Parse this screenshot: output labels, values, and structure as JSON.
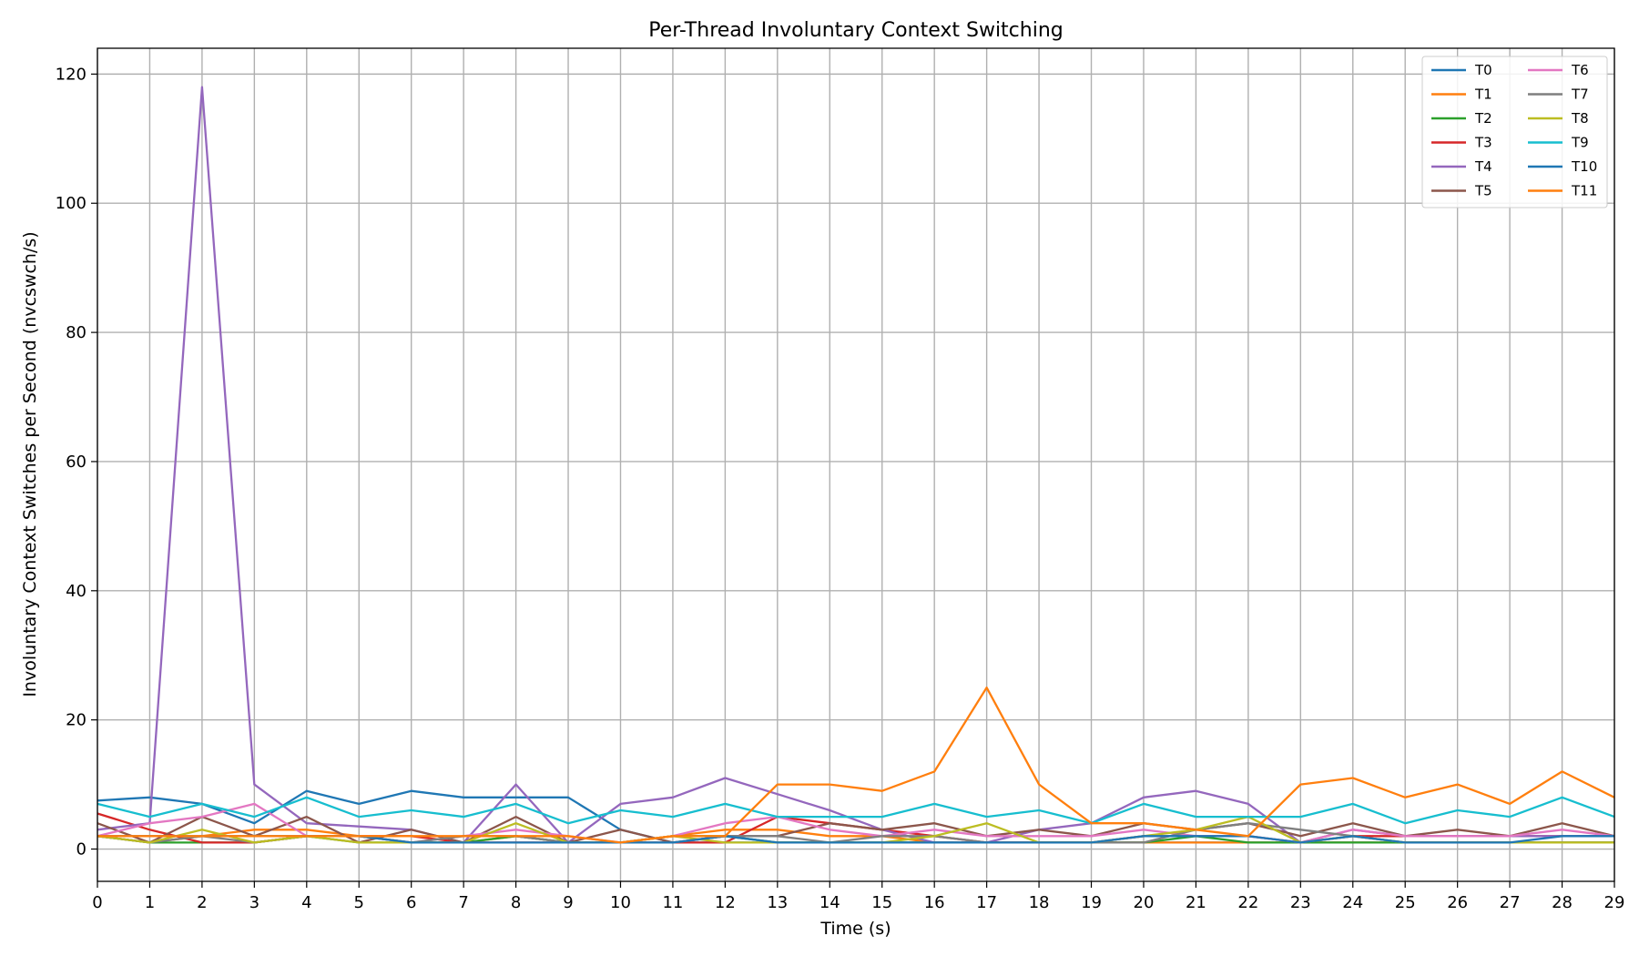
{
  "chart_data": {
    "type": "line",
    "title": "Per-Thread Involuntary Context Switching",
    "xlabel": "Time (s)",
    "ylabel": "Involuntary Context Switches per Second (nvcswch/s)",
    "xlim": [
      0,
      29
    ],
    "ylim": [
      -5,
      124
    ],
    "xticks": [
      0,
      1,
      2,
      3,
      4,
      5,
      6,
      7,
      8,
      9,
      10,
      11,
      12,
      13,
      14,
      15,
      16,
      17,
      18,
      19,
      20,
      21,
      22,
      23,
      24,
      25,
      26,
      27,
      28,
      29
    ],
    "yticks": [
      0,
      20,
      40,
      60,
      80,
      100,
      120
    ],
    "grid": true,
    "legend_position": "top-right",
    "legend_columns": 2,
    "x": [
      0,
      1,
      2,
      3,
      4,
      5,
      6,
      7,
      8,
      9,
      10,
      11,
      12,
      13,
      14,
      15,
      16,
      17,
      18,
      19,
      20,
      21,
      22,
      23,
      24,
      25,
      26,
      27,
      28,
      29
    ],
    "series": [
      {
        "name": "T0",
        "color": "#1f77b4",
        "values": [
          7.5,
          8,
          7,
          4,
          9,
          7,
          9,
          8,
          8,
          8,
          3,
          1,
          1,
          1,
          1,
          1,
          1,
          1,
          1,
          1,
          1,
          1,
          1,
          1,
          1,
          1,
          1,
          1,
          1,
          1
        ]
      },
      {
        "name": "T1",
        "color": "#ff7f0e",
        "values": [
          2,
          1,
          2,
          3,
          3,
          2,
          1,
          1,
          2,
          1,
          1,
          2,
          3,
          3,
          2,
          2,
          1,
          1,
          1,
          1,
          1,
          1,
          1,
          1,
          1,
          1,
          1,
          1,
          1,
          1
        ]
      },
      {
        "name": "T2",
        "color": "#2ca02c",
        "values": [
          2,
          1,
          1,
          1,
          2,
          1,
          1,
          1,
          2,
          1,
          1,
          2,
          2,
          1,
          1,
          1,
          1,
          1,
          1,
          1,
          1,
          2,
          1,
          1,
          1,
          1,
          1,
          1,
          1,
          1
        ]
      },
      {
        "name": "T3",
        "color": "#d62728",
        "values": [
          5.5,
          3,
          1,
          1,
          2,
          2,
          2,
          1,
          1,
          1,
          1,
          1,
          1,
          5,
          4,
          3,
          2,
          1,
          1,
          1,
          2,
          2,
          2,
          1,
          2,
          2,
          2,
          2,
          2,
          2
        ]
      },
      {
        "name": "T4",
        "color": "#9467bd",
        "values": [
          3,
          4,
          118,
          10,
          4,
          3.5,
          3,
          1,
          10,
          1,
          7,
          8,
          11,
          8.5,
          6,
          3,
          1,
          1,
          3,
          4,
          8,
          9,
          7,
          1,
          3,
          2,
          2,
          2,
          2,
          2
        ]
      },
      {
        "name": "T5",
        "color": "#8c564b",
        "values": [
          4,
          1,
          5,
          2,
          5,
          1,
          3,
          1,
          5,
          1,
          3,
          1,
          2,
          2,
          4,
          3,
          4,
          2,
          3,
          2,
          4,
          3,
          4,
          2,
          4,
          2,
          3,
          2,
          4,
          2
        ]
      },
      {
        "name": "T6",
        "color": "#e377c2",
        "values": [
          2,
          4,
          5,
          7,
          2,
          2,
          1,
          2,
          3,
          2,
          1,
          2,
          4,
          5,
          3,
          2,
          3,
          2,
          2,
          2,
          3,
          2,
          2,
          1,
          3,
          2,
          2,
          2,
          3,
          2
        ]
      },
      {
        "name": "T7",
        "color": "#7f7f7f",
        "values": [
          2,
          1,
          2,
          1,
          2,
          2,
          1,
          2,
          2,
          1,
          1,
          1,
          2,
          2,
          1,
          2,
          2,
          1,
          1,
          1,
          1,
          3,
          4,
          3,
          2,
          1,
          1,
          1,
          1,
          1
        ]
      },
      {
        "name": "T8",
        "color": "#bcbd22",
        "values": [
          2,
          1,
          3,
          1,
          2,
          1,
          1,
          1,
          4,
          1,
          1,
          2,
          1,
          1,
          1,
          1,
          2,
          4,
          1,
          1,
          2,
          3,
          5,
          1,
          2,
          1,
          1,
          1,
          1,
          1
        ]
      },
      {
        "name": "T9",
        "color": "#17becf",
        "values": [
          7,
          5,
          7,
          5,
          8,
          5,
          6,
          5,
          7,
          4,
          6,
          5,
          7,
          5,
          5,
          5,
          7,
          5,
          6,
          4,
          7,
          5,
          5,
          5,
          7,
          4,
          6,
          5,
          8,
          5
        ]
      },
      {
        "name": "T10",
        "color": "#1f77b4",
        "values": [
          2,
          2,
          2,
          2,
          2,
          2,
          1,
          1,
          1,
          1,
          1,
          1,
          2,
          1,
          1,
          1,
          1,
          1,
          1,
          1,
          2,
          2,
          2,
          1,
          2,
          1,
          1,
          1,
          2,
          2
        ]
      },
      {
        "name": "T11",
        "color": "#ff7f0e",
        "values": [
          2,
          2,
          2,
          2,
          2,
          2,
          2,
          2,
          2,
          2,
          1,
          2,
          2,
          10,
          10,
          9,
          12,
          25,
          10,
          4,
          4,
          3,
          2,
          10,
          11,
          8,
          10,
          7,
          12,
          8
        ]
      }
    ]
  }
}
